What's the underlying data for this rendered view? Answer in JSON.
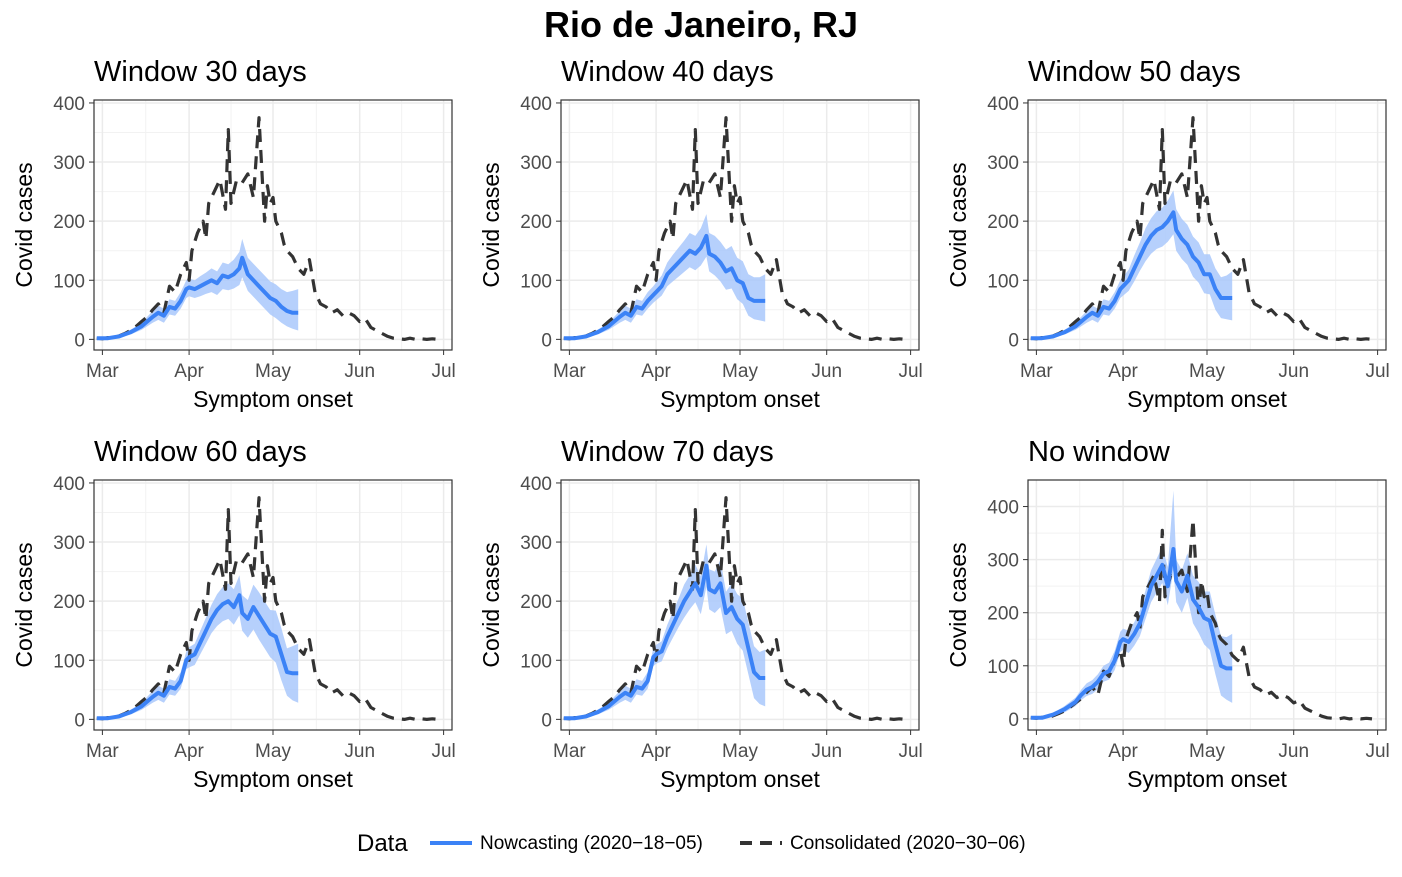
{
  "chart_data": {
    "title": "Rio de Janeiro, RJ",
    "type": "line",
    "legend": {
      "title": "Data",
      "position": "bottom",
      "entries": [
        {
          "name": "Nowcasting (2020−18−05)",
          "color": "#3b82f6",
          "style": "solid"
        },
        {
          "name": "Consolidated (2020−30−06)",
          "color": "#333333",
          "style": "dashed"
        }
      ]
    },
    "x_axis": {
      "label": "Symptom onset",
      "ticks": [
        {
          "day": 0,
          "label": "Mar"
        },
        {
          "day": 31,
          "label": "Apr"
        },
        {
          "day": 61,
          "label": "May"
        },
        {
          "day": 92,
          "label": "Jun"
        },
        {
          "day": 122,
          "label": "Jul"
        }
      ],
      "xlim": [
        -3,
        125
      ]
    },
    "y_axis": {
      "label": "Covid cases",
      "ticks": [
        0,
        100,
        200,
        300,
        400
      ]
    },
    "consolidated": {
      "days": [
        -2,
        0,
        2,
        4,
        6,
        8,
        10,
        12,
        14,
        16,
        18,
        20,
        22,
        24,
        26,
        28,
        30,
        31,
        32,
        34,
        36,
        37,
        38,
        40,
        42,
        44,
        45,
        46,
        48,
        50,
        52,
        54,
        56,
        58,
        59,
        60,
        61,
        62,
        64,
        65,
        66,
        68,
        70,
        72,
        74,
        76,
        78,
        80,
        82,
        84,
        86,
        88,
        90,
        92,
        94,
        96,
        98,
        100,
        102,
        104,
        106,
        108,
        110,
        112,
        114,
        116,
        118,
        120
      ],
      "values": [
        2,
        1,
        3,
        2,
        6,
        10,
        15,
        22,
        30,
        38,
        50,
        60,
        45,
        90,
        80,
        110,
        130,
        100,
        150,
        180,
        200,
        170,
        230,
        250,
        270,
        220,
        355,
        230,
        270,
        265,
        280,
        240,
        375,
        200,
        260,
        230,
        240,
        200,
        180,
        160,
        150,
        140,
        120,
        110,
        135,
        80,
        60,
        55,
        45,
        50,
        40,
        45,
        40,
        30,
        35,
        20,
        15,
        10,
        5,
        2,
        1,
        0,
        2,
        0,
        1,
        0,
        1,
        0
      ]
    },
    "panels": [
      {
        "title": "Window 30 days",
        "ylim": [
          -18,
          405
        ],
        "nowcast_days": [
          -2,
          2,
          6,
          10,
          14,
          16,
          18,
          20,
          22,
          24,
          26,
          28,
          30,
          31,
          33,
          35,
          37,
          39,
          41,
          43,
          45,
          47,
          49,
          50,
          52,
          54,
          56,
          58,
          60,
          62,
          64,
          66,
          68,
          70
        ],
        "nowcast": [
          2,
          2,
          5,
          12,
          22,
          30,
          38,
          45,
          40,
          55,
          52,
          65,
          85,
          88,
          85,
          90,
          95,
          100,
          95,
          108,
          105,
          110,
          120,
          138,
          110,
          100,
          90,
          80,
          70,
          65,
          55,
          48,
          45,
          45
        ],
        "lower": [
          1,
          1,
          3,
          8,
          16,
          22,
          28,
          33,
          28,
          42,
          40,
          52,
          70,
          73,
          70,
          73,
          77,
          80,
          75,
          85,
          83,
          86,
          92,
          105,
          82,
          72,
          62,
          52,
          42,
          36,
          28,
          22,
          18,
          15
        ],
        "upper": [
          4,
          4,
          8,
          16,
          28,
          38,
          48,
          57,
          52,
          68,
          65,
          80,
          100,
          103,
          100,
          107,
          113,
          120,
          115,
          130,
          127,
          135,
          148,
          170,
          138,
          128,
          118,
          108,
          98,
          93,
          85,
          80,
          82,
          85
        ]
      },
      {
        "title": "Window 40 days",
        "ylim": [
          -18,
          405
        ],
        "nowcast_days": [
          -2,
          2,
          6,
          10,
          14,
          16,
          18,
          20,
          22,
          24,
          26,
          28,
          30,
          31,
          33,
          35,
          37,
          39,
          41,
          43,
          45,
          47,
          49,
          50,
          52,
          54,
          56,
          58,
          60,
          62,
          64,
          66,
          68,
          70
        ],
        "nowcast": [
          2,
          2,
          5,
          12,
          22,
          30,
          38,
          45,
          40,
          55,
          52,
          65,
          75,
          80,
          90,
          110,
          120,
          130,
          140,
          150,
          145,
          155,
          175,
          145,
          140,
          130,
          115,
          120,
          100,
          95,
          70,
          65,
          65,
          65
        ],
        "lower": [
          1,
          1,
          3,
          8,
          16,
          22,
          28,
          33,
          28,
          42,
          40,
          52,
          62,
          66,
          74,
          90,
          98,
          106,
          114,
          122,
          117,
          125,
          140,
          115,
          108,
          98,
          84,
          86,
          68,
          60,
          40,
          34,
          32,
          30
        ],
        "upper": [
          4,
          4,
          8,
          16,
          28,
          38,
          48,
          57,
          52,
          68,
          65,
          80,
          90,
          96,
          108,
          130,
          143,
          155,
          167,
          180,
          175,
          188,
          212,
          180,
          175,
          165,
          152,
          158,
          138,
          132,
          110,
          105,
          105,
          110
        ]
      },
      {
        "title": "Window 50 days",
        "ylim": [
          -18,
          405
        ],
        "nowcast_days": [
          -2,
          2,
          6,
          10,
          14,
          16,
          18,
          20,
          22,
          24,
          26,
          28,
          30,
          31,
          33,
          35,
          37,
          39,
          41,
          43,
          45,
          47,
          49,
          50,
          52,
          54,
          56,
          58,
          60,
          62,
          64,
          66,
          68,
          70
        ],
        "nowcast": [
          2,
          2,
          5,
          12,
          22,
          30,
          38,
          45,
          40,
          55,
          52,
          65,
          85,
          90,
          100,
          120,
          140,
          160,
          175,
          185,
          190,
          200,
          215,
          185,
          170,
          160,
          140,
          130,
          110,
          110,
          85,
          70,
          70,
          70
        ],
        "lower": [
          1,
          1,
          3,
          8,
          16,
          22,
          28,
          33,
          28,
          42,
          40,
          52,
          70,
          74,
          82,
          98,
          116,
          132,
          145,
          153,
          157,
          165,
          178,
          150,
          136,
          126,
          106,
          96,
          78,
          76,
          50,
          36,
          34,
          32
        ],
        "upper": [
          4,
          4,
          8,
          16,
          28,
          38,
          48,
          57,
          52,
          68,
          65,
          80,
          100,
          106,
          118,
          142,
          164,
          188,
          205,
          217,
          223,
          235,
          252,
          220,
          204,
          194,
          174,
          164,
          144,
          144,
          120,
          105,
          108,
          115
        ]
      },
      {
        "title": "Window 60 days",
        "ylim": [
          -18,
          405
        ],
        "nowcast_days": [
          -2,
          2,
          6,
          10,
          14,
          16,
          18,
          20,
          22,
          24,
          26,
          28,
          30,
          31,
          33,
          35,
          37,
          39,
          41,
          43,
          45,
          47,
          49,
          50,
          52,
          54,
          56,
          58,
          60,
          62,
          64,
          66,
          68,
          70
        ],
        "nowcast": [
          2,
          2,
          5,
          12,
          22,
          30,
          38,
          45,
          40,
          55,
          52,
          65,
          100,
          105,
          110,
          130,
          150,
          170,
          185,
          195,
          200,
          190,
          210,
          180,
          170,
          190,
          175,
          160,
          145,
          140,
          110,
          80,
          78,
          78
        ],
        "lower": [
          1,
          1,
          3,
          8,
          16,
          22,
          28,
          33,
          28,
          42,
          40,
          52,
          85,
          88,
          92,
          110,
          128,
          146,
          158,
          166,
          170,
          160,
          176,
          150,
          138,
          152,
          135,
          120,
          105,
          96,
          66,
          40,
          32,
          28
        ],
        "upper": [
          4,
          4,
          8,
          16,
          28,
          38,
          48,
          57,
          52,
          68,
          65,
          80,
          115,
          122,
          128,
          150,
          172,
          194,
          212,
          224,
          230,
          220,
          244,
          210,
          202,
          228,
          215,
          200,
          185,
          184,
          154,
          120,
          124,
          128
        ]
      },
      {
        "title": "Window 70 days",
        "ylim": [
          -18,
          405
        ],
        "nowcast_days": [
          -2,
          2,
          6,
          10,
          14,
          16,
          18,
          20,
          22,
          24,
          26,
          28,
          30,
          31,
          33,
          35,
          37,
          39,
          41,
          43,
          45,
          47,
          49,
          50,
          52,
          54,
          56,
          58,
          60,
          62,
          64,
          66,
          68,
          70
        ],
        "nowcast": [
          2,
          2,
          5,
          12,
          22,
          30,
          38,
          45,
          40,
          55,
          52,
          65,
          105,
          110,
          115,
          140,
          160,
          180,
          200,
          215,
          230,
          210,
          260,
          220,
          215,
          230,
          180,
          190,
          170,
          160,
          120,
          80,
          70,
          70
        ],
        "lower": [
          1,
          1,
          3,
          8,
          16,
          22,
          28,
          33,
          28,
          42,
          40,
          52,
          90,
          94,
          98,
          120,
          138,
          156,
          172,
          186,
          198,
          178,
          224,
          186,
          180,
          190,
          144,
          150,
          128,
          116,
          76,
          36,
          26,
          22
        ],
        "upper": [
          4,
          4,
          8,
          16,
          28,
          38,
          48,
          57,
          52,
          68,
          65,
          80,
          120,
          126,
          132,
          160,
          182,
          204,
          228,
          244,
          262,
          242,
          296,
          254,
          250,
          270,
          216,
          230,
          212,
          204,
          164,
          124,
          114,
          118
        ]
      },
      {
        "title": "No window",
        "ylim": [
          -21,
          450
        ],
        "nowcast_days": [
          -2,
          2,
          6,
          10,
          14,
          16,
          18,
          20,
          22,
          24,
          26,
          28,
          30,
          31,
          33,
          35,
          37,
          39,
          41,
          43,
          45,
          47,
          49,
          50,
          52,
          54,
          56,
          58,
          60,
          62,
          64,
          66,
          68,
          70
        ],
        "nowcast": [
          2,
          2,
          8,
          18,
          32,
          45,
          55,
          60,
          70,
          85,
          90,
          110,
          145,
          150,
          145,
          160,
          180,
          215,
          250,
          270,
          290,
          250,
          320,
          260,
          240,
          270,
          225,
          210,
          190,
          185,
          140,
          100,
          95,
          95
        ],
        "lower": [
          1,
          1,
          5,
          12,
          24,
          35,
          43,
          47,
          56,
          70,
          74,
          92,
          126,
          130,
          124,
          138,
          156,
          188,
          220,
          238,
          256,
          214,
          280,
          220,
          200,
          228,
          180,
          162,
          140,
          130,
          84,
          44,
          36,
          30
        ],
        "upper": [
          4,
          4,
          11,
          24,
          40,
          55,
          67,
          73,
          84,
          100,
          106,
          128,
          164,
          170,
          166,
          182,
          204,
          242,
          280,
          302,
          324,
          286,
          430,
          300,
          280,
          312,
          270,
          258,
          240,
          240,
          196,
          156,
          154,
          160
        ]
      }
    ]
  }
}
